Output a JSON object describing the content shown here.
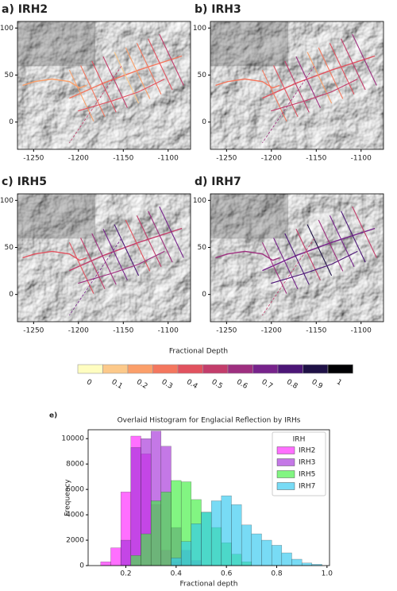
{
  "chart_data": [
    {
      "type": "map",
      "title": "a) IRH2",
      "xlim": [
        -1268,
        -1075
      ],
      "ylim": [
        -29,
        107
      ],
      "xticks": [
        -1250,
        -1200,
        -1150,
        -1100
      ],
      "yticks": [
        0,
        50,
        100
      ]
    },
    {
      "type": "map",
      "title": "b) IRH3",
      "xlim": [
        -1268,
        -1075
      ],
      "ylim": [
        -29,
        107
      ],
      "xticks": [
        -1250,
        -1200,
        -1150,
        -1100
      ],
      "yticks": [
        0,
        50,
        100
      ]
    },
    {
      "type": "map",
      "title": "c) IRH5",
      "xlim": [
        -1268,
        -1075
      ],
      "ylim": [
        -29,
        107
      ],
      "xticks": [
        -1250,
        -1200,
        -1150,
        -1100
      ],
      "yticks": [
        0,
        50,
        100
      ]
    },
    {
      "type": "map",
      "title": "d) IRH7",
      "xlim": [
        -1268,
        -1075
      ],
      "ylim": [
        -29,
        107
      ],
      "xticks": [
        -1250,
        -1200,
        -1150,
        -1100
      ],
      "yticks": [
        0,
        50,
        100
      ]
    },
    {
      "type": "colorbar",
      "title": "Fractional Depth",
      "ticks": [
        0,
        0.1,
        0.2,
        0.3,
        0.4,
        0.5,
        0.6,
        0.7,
        0.8,
        0.9,
        1
      ],
      "colors": [
        "#fffdc0",
        "#fcc98a",
        "#fb9f6a",
        "#f4775e",
        "#e1525f",
        "#c33d6b",
        "#9e2f7f",
        "#77238b",
        "#4c1677",
        "#1f1146",
        "#000004"
      ]
    },
    {
      "type": "histogram",
      "panel_label": "e)",
      "title": "Overlaid Histogram for Englacial Reflection by IRHs",
      "xlabel": "Fractional depth",
      "ylabel": "Frequency",
      "legend_title": "IRH",
      "legend": "upper right",
      "xlim": [
        0.05,
        1.01
      ],
      "ylim": [
        0,
        10700
      ],
      "xticks": [
        0.2,
        0.4,
        0.6,
        0.8,
        {
          "value": 1.0,
          "label": "1.0"
        }
      ],
      "yticks": [
        0,
        2000,
        4000,
        6000,
        8000,
        10000
      ],
      "bins": [
        0.06,
        0.1,
        0.14,
        0.18,
        0.22,
        0.26,
        0.3,
        0.34,
        0.38,
        0.42,
        0.46,
        0.5,
        0.54,
        0.58,
        0.62,
        0.66,
        0.7,
        0.74,
        0.78,
        0.82,
        0.86,
        0.9,
        0.94,
        0.98,
        1.02
      ],
      "series": [
        {
          "name": "IRH2",
          "color": "#ff22ff",
          "values": [
            0,
            300,
            1400,
            5800,
            10200,
            8800,
            4800,
            1200,
            300,
            0,
            0,
            0,
            0,
            0,
            0,
            0,
            0,
            0,
            0,
            0,
            0,
            0,
            0,
            0
          ]
        },
        {
          "name": "IRH3",
          "color": "#a530d8",
          "values": [
            0,
            0,
            0,
            2000,
            9300,
            10000,
            10600,
            9400,
            3000,
            1200,
            400,
            0,
            0,
            0,
            0,
            0,
            0,
            0,
            0,
            0,
            0,
            0,
            0,
            0
          ]
        },
        {
          "name": "IRH5",
          "color": "#3ff03f",
          "values": [
            0,
            0,
            0,
            0,
            800,
            2500,
            5100,
            5800,
            6700,
            6600,
            5200,
            4200,
            3000,
            1800,
            900,
            300,
            0,
            0,
            0,
            0,
            0,
            0,
            0,
            0
          ]
        },
        {
          "name": "IRH7",
          "color": "#30c8f0",
          "values": [
            0,
            0,
            0,
            0,
            0,
            0,
            0,
            0,
            600,
            1900,
            3300,
            4200,
            5100,
            5500,
            4800,
            3200,
            2500,
            2000,
            1600,
            1000,
            500,
            200,
            100,
            0
          ]
        }
      ]
    }
  ]
}
